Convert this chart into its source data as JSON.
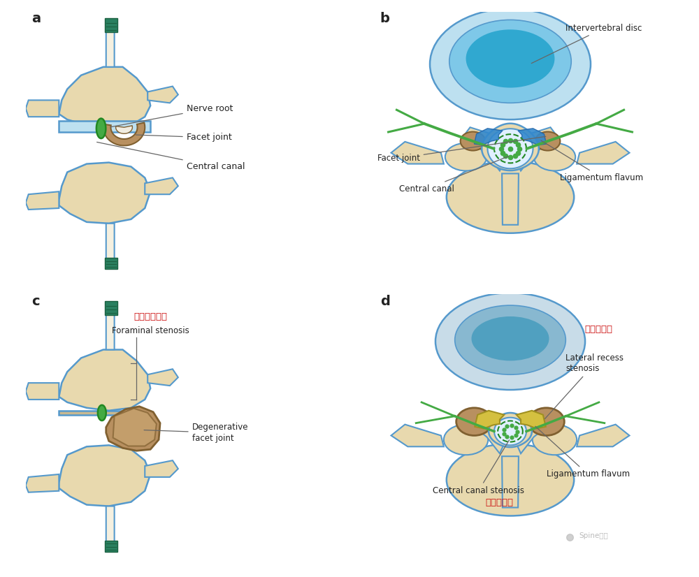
{
  "bg_color": "#ffffff",
  "bone_color": "#e8d9ae",
  "bone_edge_color": "#5599cc",
  "disc_light": "#bde0f0",
  "disc_mid": "#7ec8e8",
  "disc_dark": "#30a8d0",
  "nerve_green": "#44aa44",
  "nerve_dark": "#228822",
  "facet_tan": "#b89060",
  "facet_dark": "#806030",
  "lig_blue": "#3388cc",
  "lig_yellow": "#ccb820",
  "red_text": "#cc1111",
  "label_color": "#222222",
  "line_color": "#666666",
  "panel_a_label": "a",
  "panel_b_label": "b",
  "panel_c_label": "c",
  "panel_d_label": "d",
  "watermark": "Spine脊柱",
  "label_nerve_root": "Nerve root",
  "label_facet_joint": "Facet joint",
  "label_central_canal": "Central canal",
  "label_ivd": "Intervertebral disc",
  "label_lig_flavum": "Ligamentum flavum",
  "label_foramen_cn": "椎间孔区狭窄",
  "label_foramen_en": "Foraminal stenosis",
  "label_deg_facet": "Degenerative\nfacet joint",
  "label_lateral_cn": "侧隐窝狭窄",
  "label_lateral_en": "Lateral recess\nstenosis",
  "label_central_stenosis": "Central canal stenosis",
  "label_central_cn": "中央管狭窄",
  "teal_color": "#2a8060",
  "teal_dark": "#1a6040",
  "white_bone": "#f5f0e0",
  "dura_color": "#e0f0ff",
  "yellow_lig": "#d4c040",
  "yellow_lig_dark": "#a09020"
}
